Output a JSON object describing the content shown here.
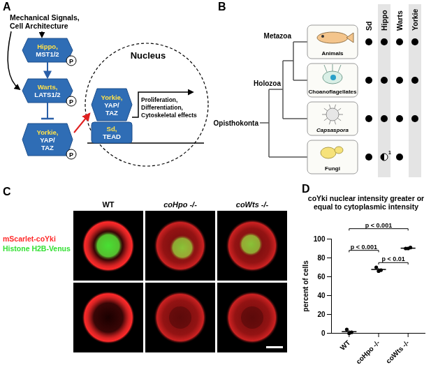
{
  "panels": {
    "A": {
      "label": "A",
      "input": [
        "Mechanical Signals,",
        "Cell Architecture"
      ],
      "cascade": [
        {
          "lines": [
            "Hippo,",
            "MST1/2"
          ]
        },
        {
          "lines": [
            "Warts,",
            "LATS1/2"
          ]
        },
        {
          "lines": [
            "Yorkie,",
            "YAP/",
            "TAZ"
          ]
        }
      ],
      "phospho_label": "P",
      "nucleus": {
        "title": "Nucleus",
        "complex": [
          {
            "lines": [
              "Yorkie,",
              "YAP/",
              "TAZ"
            ]
          },
          {
            "lines": [
              "Sd,",
              "TEAD"
            ]
          }
        ],
        "output": [
          "Proliferation,",
          "Differentiation,",
          "Cytoskeletal effects"
        ]
      }
    },
    "B": {
      "label": "B",
      "columns": [
        "Sd",
        "Hippo",
        "Warts",
        "Yorkie"
      ],
      "clades": [
        "Metazoa",
        "Holozoa",
        "Opisthokonta"
      ],
      "rows": [
        {
          "name": "Animals",
          "presence": [
            1,
            1,
            1,
            1
          ]
        },
        {
          "name": "Choanoflagellates",
          "presence": [
            1,
            1,
            1,
            1
          ]
        },
        {
          "name": "Capsaspora",
          "italic": true,
          "presence": [
            1,
            1,
            1,
            1
          ]
        },
        {
          "name": "Fungi",
          "presence": [
            1,
            0.5,
            1,
            0
          ],
          "note": {
            "column": "Hippo",
            "mark": "1"
          }
        }
      ]
    },
    "C": {
      "label": "C",
      "columns": [
        {
          "text": "WT",
          "italic": false
        },
        {
          "text": "coHpo -/-",
          "italic": true
        },
        {
          "text": "coWts -/-",
          "italic": true
        }
      ],
      "channels": [
        {
          "name": "mScarlet-coYki",
          "color": "#ff2a2a"
        },
        {
          "name": "Histone H2B-Venus",
          "color": "#33e033"
        }
      ]
    }
  },
  "chart_data": {
    "label": "D",
    "type": "scatter",
    "title": "coYki nuclear intensity greater or equal to cytoplasmic intensity",
    "y_label": "percent of cells",
    "categories": [
      "WT",
      "coHpo -/-",
      "coWts -/-"
    ],
    "values": [
      [
        4,
        0,
        1
      ],
      [
        70,
        66,
        67
      ],
      [
        90,
        90,
        91
      ]
    ],
    "means": [
      1.7,
      67.7,
      90.3
    ],
    "errors": [
      1.2,
      1.2,
      0.3
    ],
    "color": "#000000",
    "ylim": [
      0,
      100
    ],
    "yticks": [
      0,
      20,
      40,
      60,
      80,
      100
    ],
    "annotations": [
      {
        "from": "WT",
        "to": "coWts -/-",
        "y": 111,
        "text": "p < 0.001"
      },
      {
        "from": "WT",
        "to": "coHpo -/-",
        "y": 88,
        "text": "p < 0.001"
      },
      {
        "from": "coHpo -/-",
        "to": "coWts -/-",
        "y": 75,
        "text": "p < 0.01"
      }
    ]
  }
}
